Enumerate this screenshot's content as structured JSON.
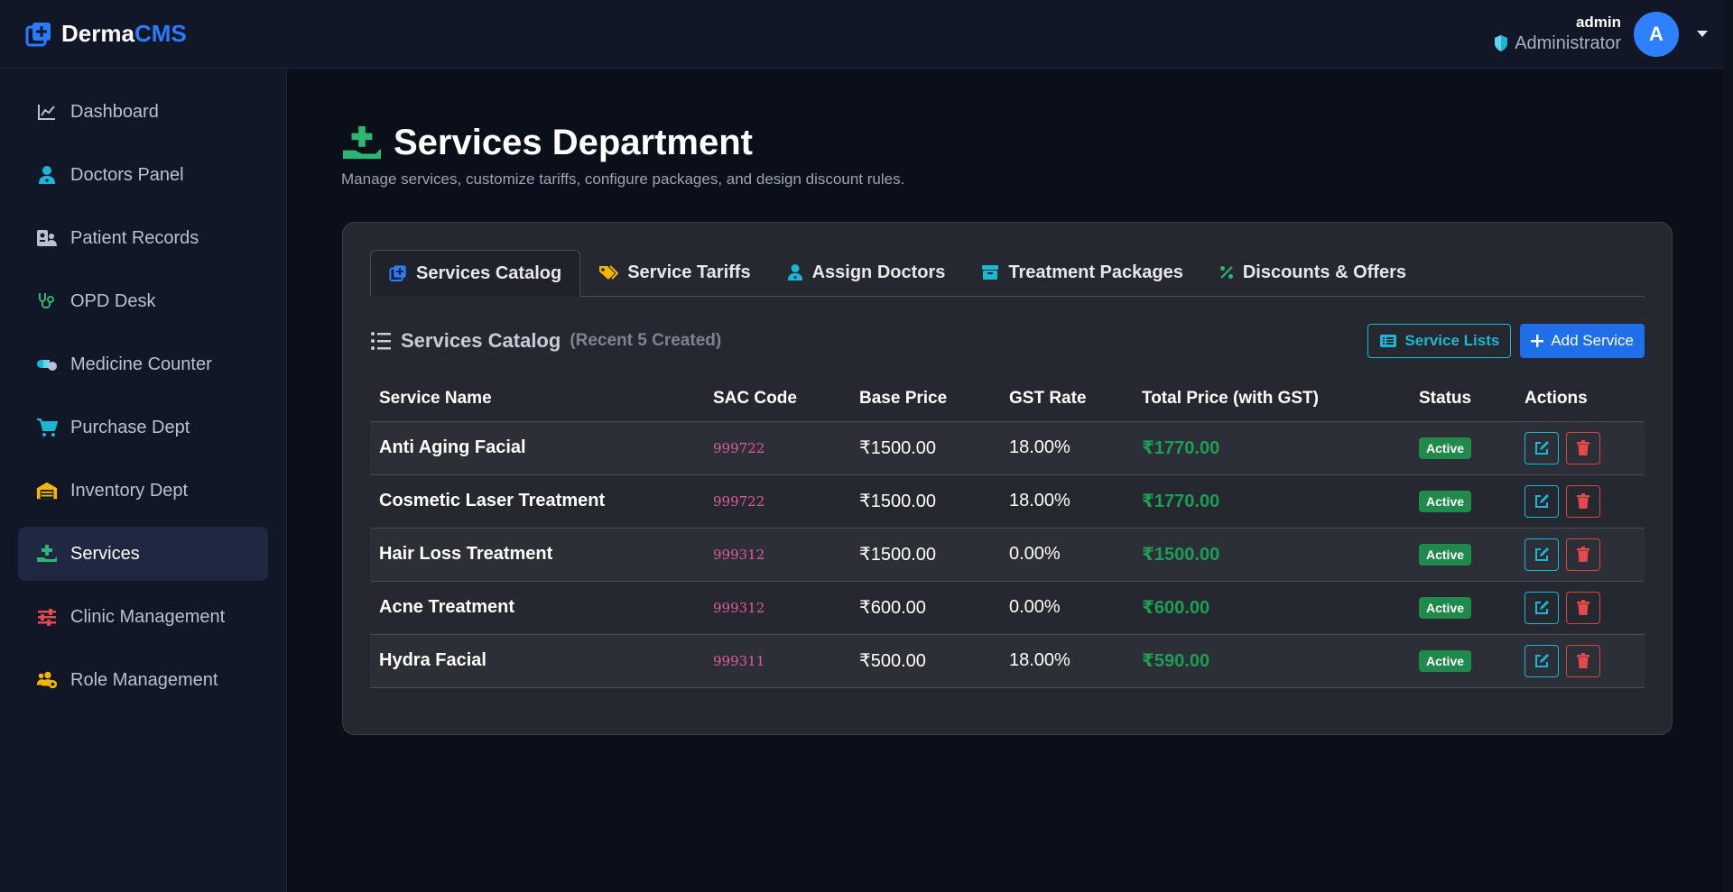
{
  "brand": {
    "part1": "Derma",
    "part2": "CMS"
  },
  "user": {
    "name": "admin",
    "role": "Administrator",
    "initial": "A"
  },
  "colors": {
    "accent": "#2b7bff",
    "success": "#1c9e55",
    "danger": "#d64545",
    "info": "#1ab6d6",
    "sac": "#e05a9e"
  },
  "sidebar": {
    "items": [
      {
        "label": "Dashboard",
        "icon": "chart-line-icon"
      },
      {
        "label": "Doctors Panel",
        "icon": "doctor-icon"
      },
      {
        "label": "Patient Records",
        "icon": "id-card-icon"
      },
      {
        "label": "OPD Desk",
        "icon": "stethoscope-icon"
      },
      {
        "label": "Medicine Counter",
        "icon": "pills-icon"
      },
      {
        "label": "Purchase Dept",
        "icon": "cart-icon"
      },
      {
        "label": "Inventory Dept",
        "icon": "warehouse-icon"
      },
      {
        "label": "Services",
        "icon": "hand-holding-medical-icon",
        "active": true
      },
      {
        "label": "Clinic Management",
        "icon": "sliders-icon"
      },
      {
        "label": "Role Management",
        "icon": "users-gear-icon"
      }
    ]
  },
  "page": {
    "title": "Services Department",
    "subtitle": "Manage services, customize tariffs, configure packages, and design discount rules."
  },
  "tabs": [
    {
      "label": "Services Catalog",
      "icon": "catalog-plus-icon",
      "active": true
    },
    {
      "label": "Service Tariffs",
      "icon": "tags-icon"
    },
    {
      "label": "Assign Doctors",
      "icon": "doctor-icon"
    },
    {
      "label": "Treatment Packages",
      "icon": "archive-box-icon"
    },
    {
      "label": "Discounts & Offers",
      "icon": "percent-icon"
    }
  ],
  "section": {
    "title": "Services Catalog",
    "subtitle": "(Recent 5 Created)",
    "service_lists_label": "Service Lists",
    "add_service_label": "Add Service"
  },
  "table": {
    "columns": [
      "Service Name",
      "SAC Code",
      "Base Price",
      "GST Rate",
      "Total Price (with GST)",
      "Status",
      "Actions"
    ],
    "rows": [
      {
        "name": "Anti Aging Facial",
        "sac": "999722",
        "base": "₹1500.00",
        "gst": "18.00%",
        "total": "₹1770.00",
        "status": "Active"
      },
      {
        "name": "Cosmetic Laser Treatment",
        "sac": "999722",
        "base": "₹1500.00",
        "gst": "18.00%",
        "total": "₹1770.00",
        "status": "Active"
      },
      {
        "name": "Hair Loss Treatment",
        "sac": "999312",
        "base": "₹1500.00",
        "gst": "0.00%",
        "total": "₹1500.00",
        "status": "Active"
      },
      {
        "name": "Acne Treatment",
        "sac": "999312",
        "base": "₹600.00",
        "gst": "0.00%",
        "total": "₹600.00",
        "status": "Active"
      },
      {
        "name": "Hydra Facial",
        "sac": "999311",
        "base": "₹500.00",
        "gst": "18.00%",
        "total": "₹590.00",
        "status": "Active"
      }
    ]
  }
}
